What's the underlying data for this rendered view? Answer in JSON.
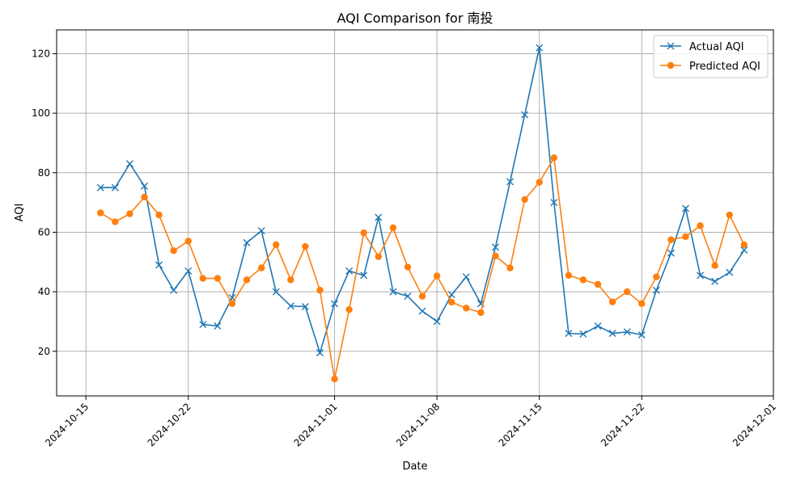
{
  "chart_data": {
    "type": "line",
    "title": "AQI Comparison for 南投",
    "xlabel": "Date",
    "ylabel": "AQI",
    "xlim": [
      "2024-10-13",
      "2024-12-01"
    ],
    "ylim": [
      5,
      128
    ],
    "x_ticks": [
      "2024-10-15",
      "2024-10-22",
      "2024-11-01",
      "2024-11-08",
      "2024-11-15",
      "2024-11-22",
      "2024-12-01"
    ],
    "y_ticks": [
      20,
      40,
      60,
      80,
      100,
      120
    ],
    "grid": true,
    "legend_position": "top-right",
    "x": [
      "2024-10-16",
      "2024-10-17",
      "2024-10-18",
      "2024-10-19",
      "2024-10-20",
      "2024-10-21",
      "2024-10-22",
      "2024-10-23",
      "2024-10-24",
      "2024-10-25",
      "2024-10-26",
      "2024-10-27",
      "2024-10-28",
      "2024-10-29",
      "2024-10-30",
      "2024-10-31",
      "2024-11-01",
      "2024-11-02",
      "2024-11-03",
      "2024-11-04",
      "2024-11-05",
      "2024-11-06",
      "2024-11-07",
      "2024-11-08",
      "2024-11-09",
      "2024-11-10",
      "2024-11-11",
      "2024-11-12",
      "2024-11-13",
      "2024-11-14",
      "2024-11-15",
      "2024-11-16",
      "2024-11-17",
      "2024-11-18",
      "2024-11-19",
      "2024-11-20",
      "2024-11-21",
      "2024-11-22",
      "2024-11-23",
      "2024-11-24",
      "2024-11-25",
      "2024-11-26",
      "2024-11-27",
      "2024-11-28",
      "2024-11-29"
    ],
    "series": [
      {
        "name": "Actual AQI",
        "color": "#1f77b4",
        "marker": "x",
        "values": [
          75,
          75,
          83,
          75.5,
          49,
          40.5,
          47,
          29,
          28.5,
          38,
          56.5,
          60.5,
          40,
          35.2,
          35,
          19.5,
          36,
          47,
          45.5,
          65,
          40,
          38.5,
          33.5,
          30,
          39,
          45,
          36,
          55,
          77,
          99.5,
          122,
          70,
          26,
          25.8,
          28.5,
          26,
          26.5,
          25.5,
          40.5,
          53,
          68,
          45.5,
          43.5,
          46.5,
          54
        ]
      },
      {
        "name": "Predicted AQI",
        "color": "#ff7f0e",
        "marker": "o",
        "values": [
          66.5,
          63.5,
          66.2,
          71.8,
          65.8,
          53.8,
          57,
          44.5,
          44.5,
          36,
          44,
          48,
          55.8,
          44,
          55.2,
          40.5,
          10.7,
          34,
          59.8,
          51.8,
          61.5,
          48.3,
          38.5,
          45.3,
          36.5,
          34.5,
          33,
          52,
          48,
          71,
          76.8,
          85,
          45.5,
          44,
          42.5,
          36.6,
          40,
          36,
          45,
          57.5,
          58.5,
          62.2,
          48.8,
          65.8,
          55.8
        ]
      }
    ]
  }
}
